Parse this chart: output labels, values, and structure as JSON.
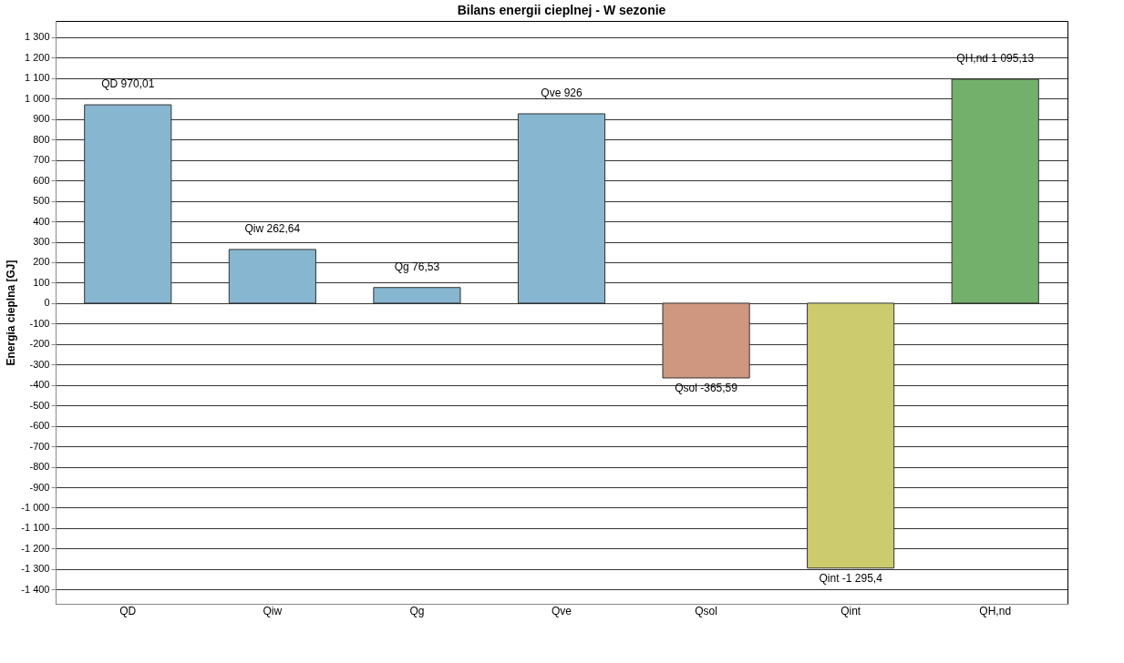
{
  "chart_data": {
    "type": "bar",
    "title": "Bilans energii cieplnej - W sezonie",
    "ylabel": "Energia cieplna [GJ]",
    "categories": [
      "QD",
      "Qiw",
      "Qg",
      "Qve",
      "Qsol",
      "Qint",
      "QH,nd"
    ],
    "values": [
      970.01,
      262.64,
      76.53,
      926,
      -365.59,
      -1295.4,
      1095.13
    ],
    "value_labels": [
      "QD 970,01",
      "Qiw 262,64",
      "Qg 76,53",
      "Qve 926",
      "Qsol -365,59",
      "Qint -1 295,4",
      "QH,nd 1 095,13"
    ],
    "colors": [
      "#87b6d0",
      "#87b6d0",
      "#87b6d0",
      "#87b6d0",
      "#cf977f",
      "#cccc6e",
      "#73b06c"
    ],
    "ylim": [
      -1470,
      1380
    ],
    "yticks": [
      {
        "value": -1400,
        "label": "-1 400"
      },
      {
        "value": -1300,
        "label": "-1 300"
      },
      {
        "value": -1200,
        "label": "-1 200"
      },
      {
        "value": -1100,
        "label": "-1 100"
      },
      {
        "value": -1000,
        "label": "-1 000"
      },
      -900,
      -800,
      -700,
      -600,
      -500,
      -400,
      -300,
      -200,
      -100,
      0,
      100,
      200,
      300,
      400,
      500,
      600,
      700,
      800,
      900,
      {
        "value": 1000,
        "label": "1 000"
      },
      {
        "value": 1100,
        "label": "1 100"
      },
      {
        "value": 1200,
        "label": "1 200"
      },
      {
        "value": 1300,
        "label": "1 300"
      }
    ],
    "grid": "y"
  }
}
